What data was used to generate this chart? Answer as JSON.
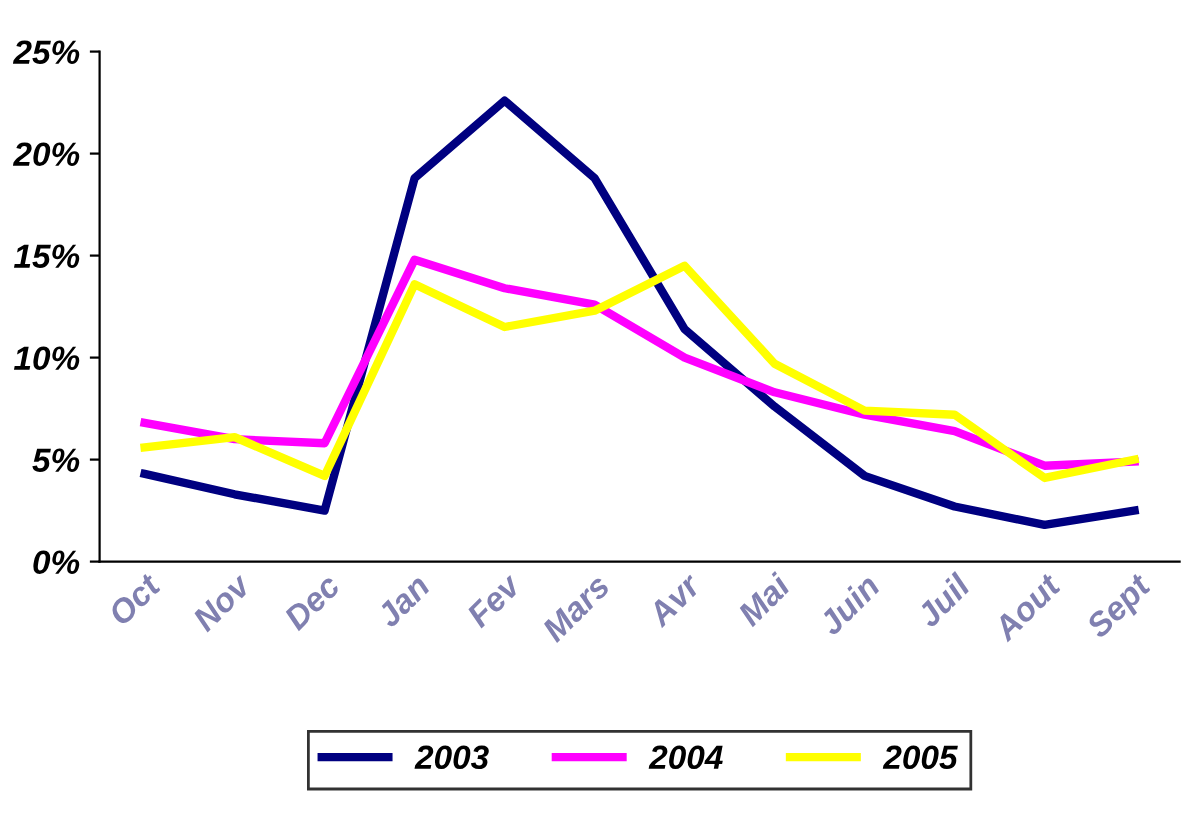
{
  "chart_data": {
    "type": "line",
    "categories": [
      "Oct",
      "Nov",
      "Dec",
      "Jan",
      "Fev",
      "Mars",
      "Avr",
      "Mai",
      "Juin",
      "Juil",
      "Aout",
      "Sept"
    ],
    "series": [
      {
        "name": "2003",
        "color": "#000080",
        "values": [
          4.3,
          3.3,
          2.5,
          18.8,
          22.6,
          18.8,
          11.4,
          7.6,
          4.2,
          2.7,
          1.8,
          2.5
        ]
      },
      {
        "name": "2004",
        "color": "#ff00ff",
        "values": [
          6.8,
          6.0,
          5.8,
          14.8,
          13.4,
          12.6,
          10.0,
          8.3,
          7.2,
          6.4,
          4.7,
          4.9
        ]
      },
      {
        "name": "2005",
        "color": "#ffff00",
        "values": [
          5.6,
          6.1,
          4.2,
          13.6,
          11.5,
          12.3,
          14.5,
          9.7,
          7.4,
          7.2,
          4.1,
          5.0
        ]
      }
    ],
    "ylim": [
      0,
      25
    ],
    "yticks": [
      {
        "value": 0,
        "label": "0%"
      },
      {
        "value": 5,
        "label": "5%"
      },
      {
        "value": 10,
        "label": "10%"
      },
      {
        "value": 15,
        "label": "15%"
      },
      {
        "value": 20,
        "label": "20%"
      },
      {
        "value": 25,
        "label": "25%"
      }
    ],
    "grid": false,
    "legend": "bottom",
    "marker": "none",
    "line_style": "solid"
  }
}
